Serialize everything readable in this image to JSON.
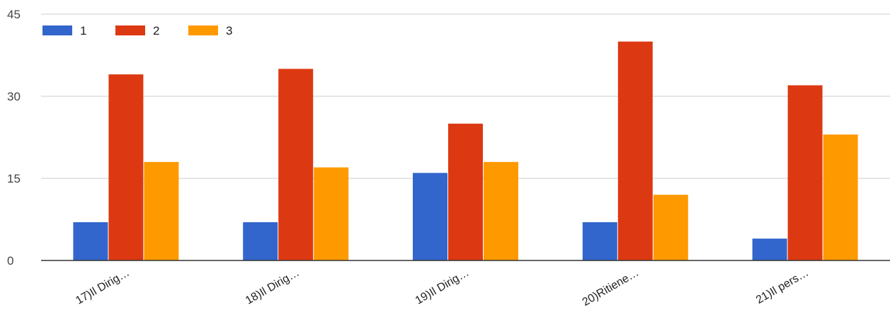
{
  "chart_data": {
    "type": "bar",
    "categories": [
      "17)Il Dirig…",
      "18)Il Dirig…",
      "19)Il Dirig…",
      "20)Ritiene…",
      "21)Il pers…"
    ],
    "series": [
      {
        "name": "1",
        "color": "#3366cc",
        "values": [
          7,
          7,
          16,
          7,
          4
        ]
      },
      {
        "name": "2",
        "color": "#dc3912",
        "values": [
          34,
          35,
          25,
          40,
          32
        ]
      },
      {
        "name": "3",
        "color": "#ff9900",
        "values": [
          18,
          17,
          18,
          12,
          23
        ]
      }
    ],
    "yticks": [
      0,
      15,
      30,
      45
    ],
    "ylim": [
      0,
      45
    ],
    "legend_position": "top-left",
    "grid": true
  }
}
